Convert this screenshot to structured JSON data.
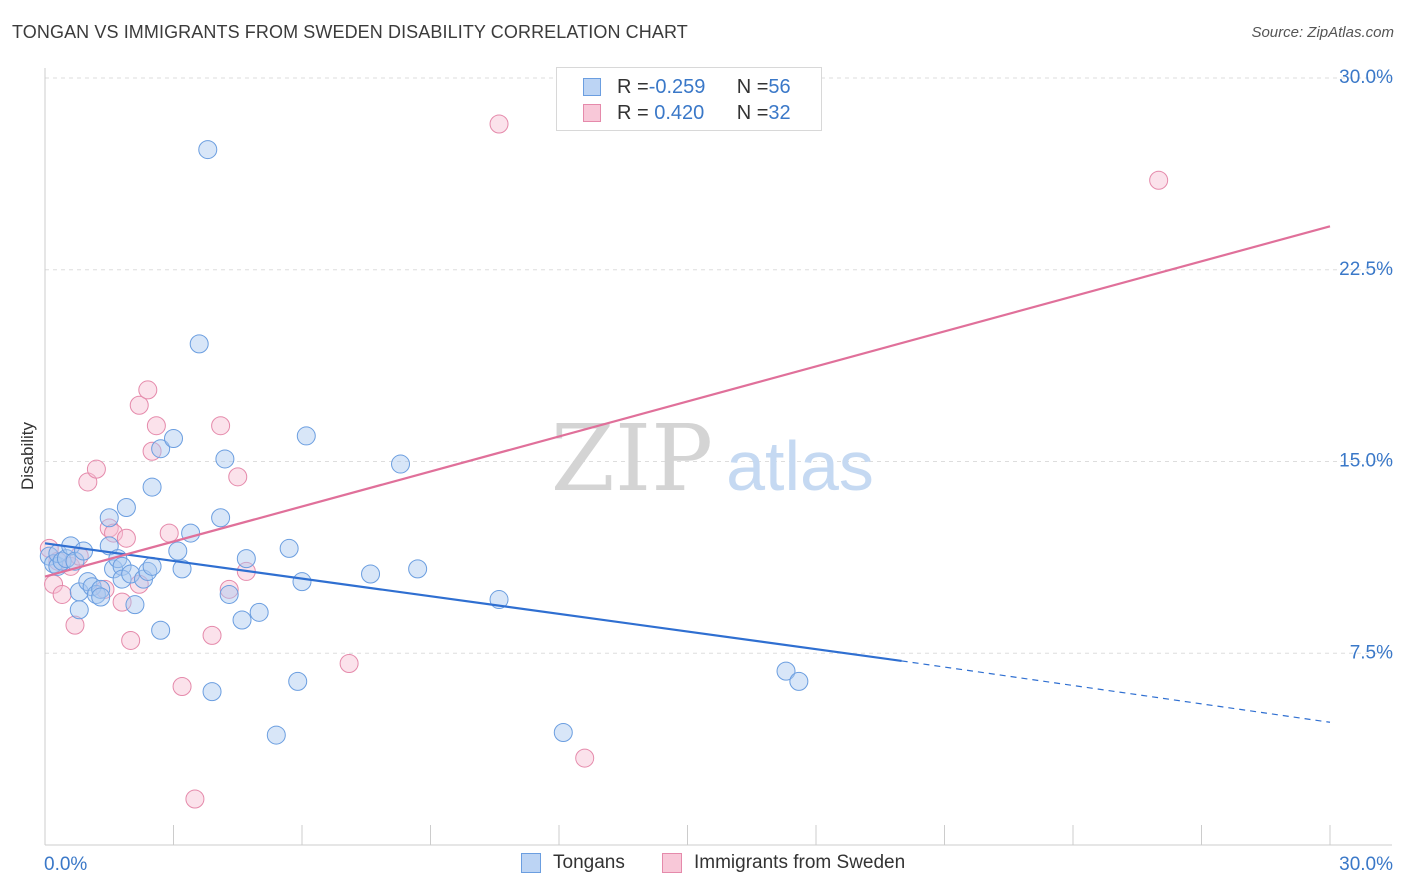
{
  "title": "TONGAN VS IMMIGRANTS FROM SWEDEN DISABILITY CORRELATION CHART",
  "source": "Source: ZipAtlas.com",
  "watermark": {
    "zip": "ZIP",
    "atlas": "atlas"
  },
  "colors": {
    "tongan": "#4a86d8",
    "tongan_fill": "#a9c8f0",
    "sweden": "#e0709a",
    "sweden_fill": "#f6bfd2",
    "axis_text": "#3a78c8",
    "grid": "#dddddd"
  },
  "legend": {
    "rows": [
      {
        "r_label": "R = ",
        "r_value": "-0.259",
        "n_label": "N = ",
        "n_value": "56"
      },
      {
        "r_label": "R = ",
        "r_value": " 0.420",
        "n_label": "N = ",
        "n_value": "32"
      }
    ]
  },
  "bottom_legend": {
    "tongan": "Tongans",
    "sweden": "Immigrants from Sweden"
  },
  "chart_data": {
    "type": "scatter",
    "title": "TONGAN VS IMMIGRANTS FROM SWEDEN DISABILITY CORRELATION CHART",
    "xlabel": "",
    "ylabel": "Disability",
    "xlim": [
      0,
      30
    ],
    "ylim": [
      0,
      30
    ],
    "x_tick_labels": {
      "left": "0.0%",
      "right": "30.0%"
    },
    "y_ticks": [
      {
        "value": 7.5,
        "label": "7.5%"
      },
      {
        "value": 15.0,
        "label": "15.0%"
      },
      {
        "value": 22.5,
        "label": "22.5%"
      },
      {
        "value": 30.0,
        "label": "30.0%"
      }
    ],
    "grid": "horizontal dashed",
    "legend_position": "top-center",
    "series": [
      {
        "name": "Tongans",
        "r": -0.259,
        "n": 56,
        "trend": {
          "x0": 0.0,
          "y0": 11.8,
          "x1": 20.0,
          "y1": 7.2,
          "dashed_to_x": 30.0,
          "dashed_to_y": 4.8
        },
        "points": [
          [
            0.1,
            11.3
          ],
          [
            0.2,
            11.0
          ],
          [
            0.3,
            10.9
          ],
          [
            0.3,
            11.4
          ],
          [
            0.4,
            11.1
          ],
          [
            0.5,
            11.2
          ],
          [
            0.6,
            11.7
          ],
          [
            0.7,
            11.1
          ],
          [
            0.8,
            9.2
          ],
          [
            0.8,
            9.9
          ],
          [
            0.9,
            11.5
          ],
          [
            1.0,
            10.3
          ],
          [
            1.1,
            10.1
          ],
          [
            1.2,
            9.8
          ],
          [
            1.3,
            10.0
          ],
          [
            1.3,
            9.7
          ],
          [
            1.5,
            11.7
          ],
          [
            1.5,
            12.8
          ],
          [
            1.6,
            10.8
          ],
          [
            1.7,
            11.2
          ],
          [
            1.8,
            10.9
          ],
          [
            1.8,
            10.4
          ],
          [
            1.9,
            13.2
          ],
          [
            2.0,
            10.6
          ],
          [
            2.1,
            9.4
          ],
          [
            2.3,
            10.4
          ],
          [
            2.4,
            10.7
          ],
          [
            2.5,
            10.9
          ],
          [
            2.5,
            14.0
          ],
          [
            2.7,
            8.4
          ],
          [
            2.7,
            15.5
          ],
          [
            3.0,
            15.9
          ],
          [
            3.1,
            11.5
          ],
          [
            3.2,
            10.8
          ],
          [
            3.4,
            12.2
          ],
          [
            3.6,
            19.6
          ],
          [
            3.8,
            27.2
          ],
          [
            3.9,
            6.0
          ],
          [
            4.1,
            12.8
          ],
          [
            4.2,
            15.1
          ],
          [
            4.3,
            9.8
          ],
          [
            4.6,
            8.8
          ],
          [
            4.7,
            11.2
          ],
          [
            5.0,
            9.1
          ],
          [
            5.4,
            4.3
          ],
          [
            5.7,
            11.6
          ],
          [
            5.9,
            6.4
          ],
          [
            6.0,
            10.3
          ],
          [
            6.1,
            16.0
          ],
          [
            7.6,
            10.6
          ],
          [
            8.3,
            14.9
          ],
          [
            8.7,
            10.8
          ],
          [
            10.6,
            9.6
          ],
          [
            12.1,
            4.4
          ],
          [
            17.3,
            6.8
          ],
          [
            17.6,
            6.4
          ]
        ]
      },
      {
        "name": "Immigrants from Sweden",
        "r": 0.42,
        "n": 32,
        "trend": {
          "x0": 0.0,
          "y0": 10.5,
          "x1": 30.0,
          "y1": 24.2
        },
        "points": [
          [
            0.1,
            11.6
          ],
          [
            0.2,
            10.2
          ],
          [
            0.3,
            11.1
          ],
          [
            0.4,
            9.8
          ],
          [
            0.6,
            10.9
          ],
          [
            0.7,
            8.6
          ],
          [
            0.8,
            11.3
          ],
          [
            1.0,
            14.2
          ],
          [
            1.2,
            14.7
          ],
          [
            1.4,
            10.0
          ],
          [
            1.5,
            12.4
          ],
          [
            1.6,
            12.2
          ],
          [
            1.8,
            9.5
          ],
          [
            1.9,
            12.0
          ],
          [
            2.0,
            8.0
          ],
          [
            2.2,
            10.2
          ],
          [
            2.2,
            17.2
          ],
          [
            2.4,
            17.8
          ],
          [
            2.5,
            15.4
          ],
          [
            2.6,
            16.4
          ],
          [
            2.9,
            12.2
          ],
          [
            3.2,
            6.2
          ],
          [
            3.5,
            1.8
          ],
          [
            3.9,
            8.2
          ],
          [
            4.1,
            16.4
          ],
          [
            4.3,
            10.0
          ],
          [
            4.5,
            14.4
          ],
          [
            4.7,
            10.7
          ],
          [
            7.1,
            7.1
          ],
          [
            10.6,
            28.2
          ],
          [
            12.6,
            3.4
          ],
          [
            26.0,
            26.0
          ]
        ]
      }
    ]
  }
}
